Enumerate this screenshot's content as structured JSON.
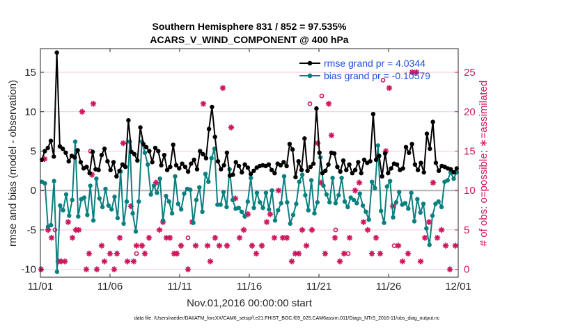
{
  "chart_data": {
    "type": "line",
    "title_line1": "Southern Hemisphere 831 / 852 = 97.535%",
    "title_line2": "ACARS_V_WIND_COMPONENT @ 400 hPa",
    "ylabel_left": "rmse and bias (model - observation)",
    "ylabel_right": "# of obs: o=possible; ∗=assimilated",
    "xlabel": "Nov.01,2016 00:00:00 start",
    "footnote": "data file: /Users/raeder/DAI/ATM_forcXX/CAM6_setup/f.e21.FHIST_BGC.f09_025.CAM6assim.011/Diags_NTrS_2016-11/obs_diag_output.nc",
    "x_ticks": [
      "11/01",
      "11/06",
      "11/11",
      "11/16",
      "11/21",
      "11/26",
      "12/01"
    ],
    "x_tick_days": [
      0,
      5,
      10,
      15,
      20,
      25,
      30
    ],
    "xlim_days": [
      0,
      30
    ],
    "y_left_ticks": [
      15,
      10,
      5,
      0,
      -5,
      -10
    ],
    "ylim_left": [
      -11,
      18
    ],
    "y_right_ticks": [
      25,
      20,
      15,
      10,
      5,
      0
    ],
    "ylim_right": [
      -1,
      28
    ],
    "colors": {
      "rmse": "#000000",
      "bias": "#0a7f7f",
      "obs": "#d1155e",
      "zero": "#b3b3b3",
      "legend_text": "#1a4fd6"
    },
    "series": [
      {
        "name": "rmse grand pr = 4.0344",
        "values": [
          3.9,
          5.0,
          5.4,
          6.3,
          4.3,
          17.5,
          5.6,
          5.3,
          4.8,
          3.7,
          4.4,
          4.2,
          5.1,
          3.6,
          2.8,
          3.0,
          2.2,
          4.9,
          2.7,
          2.6,
          4.5,
          5.3,
          3.7,
          2.6,
          3.6,
          1.8,
          2.5,
          3.3,
          3.0,
          8.9,
          4.9,
          4.6,
          3.8,
          8.0,
          5.9,
          5.5,
          5.0,
          3.6,
          5.4,
          5.0,
          3.2,
          4.5,
          2.6,
          3.0,
          5.8,
          3.2,
          2.8,
          3.4,
          3.0,
          2.4,
          3.4,
          3.9,
          2.7,
          5.0,
          4.6,
          4.1,
          7.8,
          10.6,
          6.8,
          3.7,
          2.7,
          3.2,
          4.8,
          1.9,
          2.0,
          3.6,
          3.1,
          2.3,
          3.3,
          2.9,
          2.1,
          2.5,
          2.9,
          3.1,
          3.2,
          3.1,
          3.3,
          2.6,
          2.2,
          3.4,
          3.2,
          3.6,
          3.1,
          5.9,
          5.2,
          1.7,
          3.7,
          2.6,
          6.6,
          2.5,
          3.0,
          3.4,
          10.4,
          4.8,
          2.2,
          2.5,
          3.3,
          4.8,
          4.7,
          3.0,
          2.4,
          3.8,
          2.6,
          3.3,
          2.2,
          2.6,
          3.6,
          2.2,
          3.9,
          3.5,
          3.7,
          9.7,
          3.9,
          4.4,
          1.8,
          4.7,
          2.2,
          2.8,
          3.4,
          3.3,
          2.6,
          2.8,
          5.5,
          4.8,
          5.9,
          3.3,
          2.6,
          3.5,
          2.3,
          7.2,
          5.3,
          8.7,
          3.5,
          2.5,
          3.1,
          3.0,
          2.8,
          2.7,
          2.3,
          2.8
        ]
      },
      {
        "name": "bias grand pr = -0.10579",
        "values": [
          1.1,
          0.9,
          -4.6,
          -4.4,
          1.2,
          -10.3,
          -1.9,
          -2.5,
          -0.5,
          -3.2,
          -1.2,
          6.2,
          -3.3,
          -1.1,
          -0.9,
          -3.1,
          0.6,
          -3.8,
          1.5,
          -1.0,
          -2.1,
          0.2,
          -1.9,
          -2.4,
          -0.8,
          -3.5,
          2.4,
          -4.2,
          -1.4,
          6.2,
          -2.9,
          -5.2,
          -1.4,
          6.2,
          4.8,
          3.3,
          -0.5,
          0.6,
          -0.3,
          1.5,
          -3.8,
          -0.7,
          -1.4,
          -2.9,
          1.8,
          -1.7,
          -2.4,
          -0.4,
          0.2,
          0.1,
          -4.1,
          -1.2,
          0.4,
          -2.7,
          2.1,
          1.1,
          4.1,
          5.3,
          -1.8,
          -1.8,
          -0.2,
          -2.1,
          2.7,
          -1.2,
          -2.3,
          -2.2,
          -2.7,
          -3.3,
          -1.4,
          1.6,
          -2.2,
          -0.3,
          -1.5,
          -2.2,
          -0.3,
          -2.4,
          0.0,
          -3.8,
          -2.5,
          -1.6,
          1.8,
          -1.5,
          -4.2,
          -3.1,
          -1.7,
          1.1,
          2.0,
          -0.6,
          -2.5,
          1.3,
          -2.9,
          -1.5,
          4.2,
          0.6,
          -0.5,
          -1.5,
          1.6,
          -1.6,
          -0.6,
          1.6,
          -1.4,
          -2.1,
          -0.9,
          -1.2,
          -1.6,
          -0.4,
          -1.9,
          -2.7,
          -3.7,
          1.1,
          0.3,
          5.7,
          -2.6,
          -4.1,
          0.5,
          1.2,
          -3.4,
          -1.5,
          -0.2,
          -1.8,
          -1.6,
          -2.3,
          -0.3,
          -3.9,
          -1.1,
          -2.8,
          -1.7,
          -4.8,
          -6.9,
          -3.2,
          -1.7,
          -1.4,
          -2.1,
          1.1,
          1.3,
          2.3,
          1.5,
          2.3
        ]
      }
    ],
    "obs_assimilated": [
      [
        0.05,
        0
      ],
      [
        0.3,
        14
      ],
      [
        0.55,
        5
      ],
      [
        0.8,
        4
      ],
      [
        1.3,
        1
      ],
      [
        1.5,
        1
      ],
      [
        1.75,
        1
      ],
      [
        2.0,
        6
      ],
      [
        2.3,
        4
      ],
      [
        2.55,
        5
      ],
      [
        2.75,
        5
      ],
      [
        3.0,
        20
      ],
      [
        3.3,
        0
      ],
      [
        3.5,
        2
      ],
      [
        3.7,
        12
      ],
      [
        3.8,
        21
      ],
      [
        4.05,
        0
      ],
      [
        4.4,
        3
      ],
      [
        4.6,
        1
      ],
      [
        5.0,
        2
      ],
      [
        5.3,
        0
      ],
      [
        5.5,
        2
      ],
      [
        5.7,
        4
      ],
      [
        5.95,
        16
      ],
      [
        6.25,
        1
      ],
      [
        6.5,
        8
      ],
      [
        6.7,
        1
      ],
      [
        6.9,
        3
      ],
      [
        7.3,
        3
      ],
      [
        7.5,
        2
      ],
      [
        7.8,
        4
      ],
      [
        8.3,
        11
      ],
      [
        8.55,
        5
      ],
      [
        8.8,
        6
      ],
      [
        9.05,
        4
      ],
      [
        9.3,
        4
      ],
      [
        9.6,
        2
      ],
      [
        9.8,
        2
      ],
      [
        10.1,
        3
      ],
      [
        10.6,
        0
      ],
      [
        10.9,
        6
      ],
      [
        11.15,
        3
      ],
      [
        11.7,
        21
      ],
      [
        12.0,
        3
      ],
      [
        12.2,
        1
      ],
      [
        12.55,
        4
      ],
      [
        12.85,
        3
      ],
      [
        13.1,
        23
      ],
      [
        13.4,
        3
      ],
      [
        13.7,
        18
      ],
      [
        14.0,
        9
      ],
      [
        14.3,
        4
      ],
      [
        14.6,
        5
      ],
      [
        14.9,
        7
      ],
      [
        15.2,
        3
      ],
      [
        15.5,
        2
      ],
      [
        15.9,
        3
      ],
      [
        16.25,
        6
      ],
      [
        16.5,
        7
      ],
      [
        16.8,
        4
      ],
      [
        17.1,
        10
      ],
      [
        17.4,
        4
      ],
      [
        17.7,
        4
      ],
      [
        18.05,
        1
      ],
      [
        18.3,
        2
      ],
      [
        18.55,
        2
      ],
      [
        18.8,
        5
      ],
      [
        19.1,
        3
      ],
      [
        19.5,
        5
      ],
      [
        19.9,
        16
      ],
      [
        20.15,
        11
      ],
      [
        20.45,
        2
      ],
      [
        20.7,
        21
      ],
      [
        20.9,
        17
      ],
      [
        21.15,
        4
      ],
      [
        21.5,
        1
      ],
      [
        21.8,
        2
      ],
      [
        22.2,
        4
      ],
      [
        22.6,
        10
      ],
      [
        22.9,
        11
      ],
      [
        23.2,
        6
      ],
      [
        23.5,
        5
      ],
      [
        23.8,
        2
      ],
      [
        24.1,
        4
      ],
      [
        24.4,
        2
      ],
      [
        24.8,
        15
      ],
      [
        25.05,
        23
      ],
      [
        25.3,
        8
      ],
      [
        25.7,
        3
      ],
      [
        26.0,
        1
      ],
      [
        26.4,
        2
      ],
      [
        26.7,
        25
      ],
      [
        27.0,
        25
      ],
      [
        27.3,
        1
      ],
      [
        27.6,
        4
      ],
      [
        27.9,
        6
      ],
      [
        28.2,
        11
      ],
      [
        28.5,
        4
      ],
      [
        28.8,
        5
      ],
      [
        29.1,
        3
      ],
      [
        29.4,
        0
      ],
      [
        29.8,
        3
      ]
    ],
    "obs_possible": [
      [
        1.05,
        5
      ],
      [
        3.6,
        15
      ],
      [
        6.9,
        2
      ],
      [
        10.6,
        4
      ],
      [
        19.35,
        21
      ],
      [
        20.2,
        22
      ],
      [
        21.2,
        5
      ],
      [
        22.1,
        2
      ],
      [
        24.6,
        24
      ],
      [
        25.4,
        3
      ]
    ]
  }
}
